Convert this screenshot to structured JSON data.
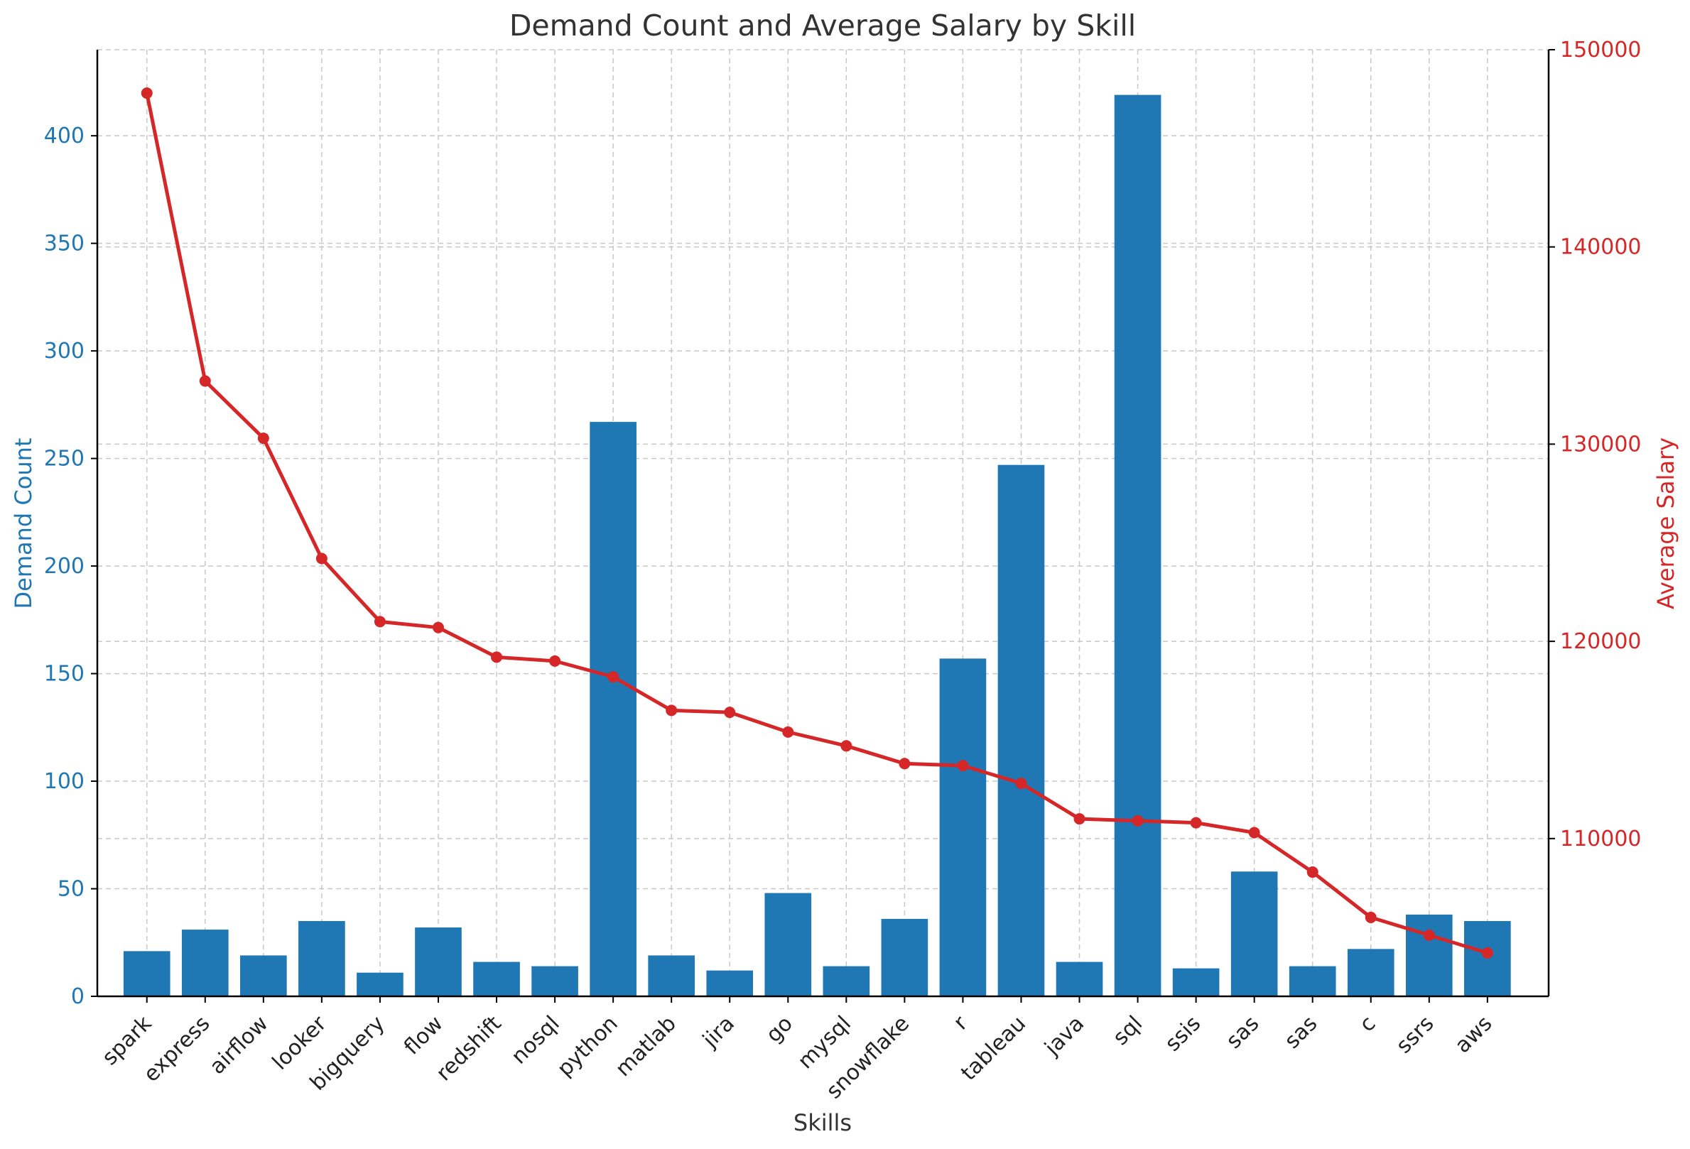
{
  "chart_data": {
    "type": "bar",
    "title": "Demand Count and Average Salary by Skill",
    "xlabel": "Skills",
    "ylabel": "Demand Count",
    "y2label": "Average Salary",
    "categories": [
      "spark",
      "express",
      "airflow",
      "looker",
      "bigquery",
      "flow",
      "redshift",
      "nosql",
      "python",
      "matlab",
      "jira",
      "go",
      "mysql",
      "snowflake",
      "r",
      "tableau",
      "java",
      "sql",
      "ssis",
      "sas",
      "sas",
      "c",
      "ssrs",
      "aws"
    ],
    "series": [
      {
        "name": "Demand Count",
        "type": "bar",
        "axis": "left",
        "color": "#1f77b4",
        "values": [
          21,
          31,
          19,
          35,
          11,
          32,
          16,
          14,
          267,
          19,
          12,
          48,
          14,
          36,
          157,
          247,
          16,
          419,
          13,
          58,
          14,
          22,
          38,
          35
        ]
      },
      {
        "name": "Average Salary",
        "type": "line",
        "axis": "right",
        "color": "#d62728",
        "values": [
          147800,
          133200,
          130300,
          124200,
          121000,
          120700,
          119200,
          119000,
          118200,
          116500,
          116400,
          115400,
          114700,
          113800,
          113700,
          112800,
          111000,
          110900,
          110800,
          110300,
          108300,
          106000,
          105100,
          104200
        ]
      }
    ],
    "ylim": [
      0,
      440
    ],
    "yticks": [
      0,
      50,
      100,
      150,
      200,
      250,
      300,
      350,
      400
    ],
    "y2lim": [
      102000,
      150000
    ],
    "y2ticks": [
      110000,
      120000,
      130000,
      140000,
      150000
    ],
    "grid": true,
    "colors": {
      "left_axis": "#1f77b4",
      "right_axis": "#d62728",
      "text": "#333333"
    }
  }
}
